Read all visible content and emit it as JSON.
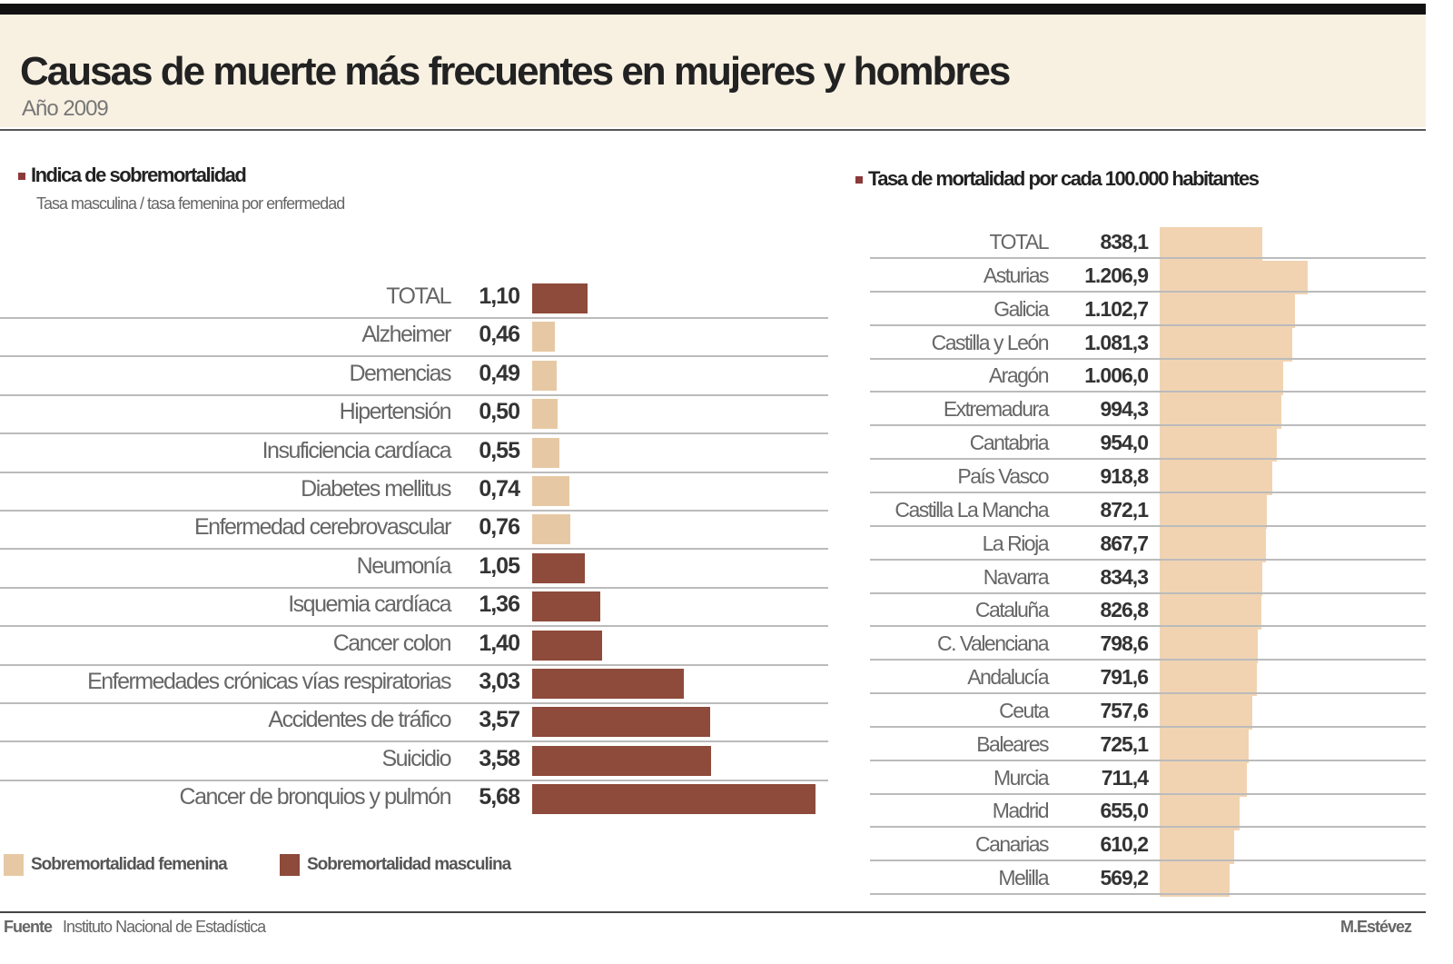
{
  "header": {
    "title": "Causas de muerte más frecuentes en mujeres y hombres",
    "subtitle": "Año 2009"
  },
  "colors": {
    "female": "#e6c9a4",
    "male": "#8e4a3a",
    "rate": "#f1d3b2"
  },
  "chart_data": [
    {
      "type": "bar",
      "orientation": "horizontal",
      "title": "Indica de sobremortalidad",
      "subtitle": "Tasa masculina / tasa femenina por enfermedad",
      "categories": [
        "TOTAL",
        "Alzheimer",
        "Demencias",
        "Hipertensión",
        "Insuficiencia cardíaca",
        "Diabetes mellitus",
        "Enfermedad cerebrovascular",
        "Neumonía",
        "Isquemia cardíaca",
        "Cancer colon",
        "Enfermedades crónicas vías respiratorias",
        "Accidentes de tráfico",
        "Suicidio",
        "Cancer de bronquios y pulmón"
      ],
      "values": [
        1.1,
        0.46,
        0.49,
        0.5,
        0.55,
        0.74,
        0.76,
        1.05,
        1.36,
        1.4,
        3.03,
        3.57,
        3.58,
        5.68
      ],
      "value_labels": [
        "1,10",
        "0,46",
        "0,49",
        "0,50",
        "0,55",
        "0,74",
        "0,76",
        "1,05",
        "1,36",
        "1,40",
        "3,03",
        "3,57",
        "3,58",
        "5,68"
      ],
      "legend": [
        "Sobremortalidad femenina",
        "Sobremortalidad masculina"
      ],
      "grid": true
    },
    {
      "type": "bar",
      "orientation": "horizontal",
      "title": "Tasa de mortalidad por cada 100.000 habitantes",
      "categories": [
        "TOTAL",
        "Asturias",
        "Galicia",
        "Castilla y León",
        "Aragón",
        "Extremadura",
        "Cantabria",
        "País Vasco",
        "Castilla La Mancha",
        "La Rioja",
        "Navarra",
        "Cataluña",
        "C. Valenciana",
        "Andalucía",
        "Ceuta",
        "Baleares",
        "Murcia",
        "Madrid",
        "Canarias",
        "Melilla"
      ],
      "values": [
        838.1,
        1206.9,
        1102.7,
        1081.3,
        1006.0,
        994.3,
        954.0,
        918.8,
        872.1,
        867.7,
        834.3,
        826.8,
        798.6,
        791.6,
        757.6,
        725.1,
        711.4,
        655.0,
        610.2,
        569.2
      ],
      "value_labels": [
        "838,1",
        "1.206,9",
        "1.102,7",
        "1.081,3",
        "1.006,0",
        "994,3",
        "954,0",
        "918,8",
        "872,1",
        "867,7",
        "834,3",
        "826,8",
        "798,6",
        "791,6",
        "757,6",
        "725,1",
        "711,4",
        "655,0",
        "610,2",
        "569,2"
      ],
      "grid": true
    }
  ],
  "footer": {
    "source_label": "Fuente",
    "source": "Instituto Nacional de Estadística",
    "credit": "M.Estévez"
  }
}
